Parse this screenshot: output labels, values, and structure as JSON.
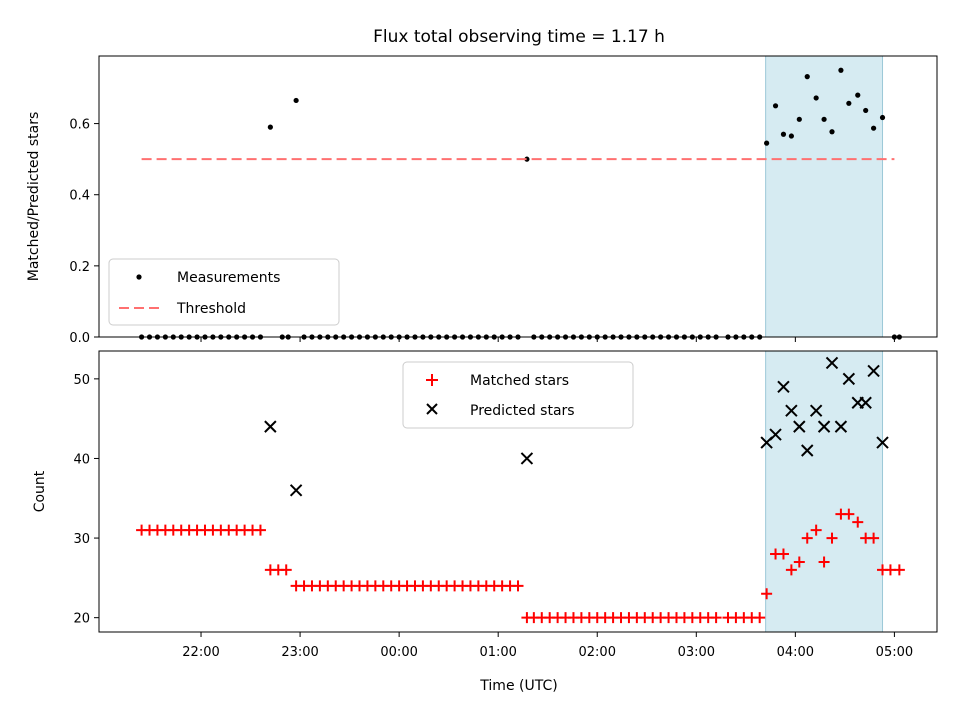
{
  "chart_data": [
    {
      "type": "scatter",
      "title": "Flux total observing time = 1.17 h",
      "xlabel": "",
      "ylabel": "Matched/Predicted stars",
      "xlim_hours": [
        20.97,
        29.43
      ],
      "ylim": [
        0,
        0.79
      ],
      "yticks": [
        0.0,
        0.2,
        0.4,
        0.6
      ],
      "ytick_labels": [
        "0.0",
        "0.2",
        "0.4",
        "0.6"
      ],
      "xticks": [
        22,
        23,
        24,
        25,
        26,
        27,
        28,
        29
      ],
      "highlight_span_hours": [
        27.7,
        28.88
      ],
      "threshold": {
        "name": "Threshold",
        "value": 0.5,
        "x_start": 21.4,
        "x_end": 29.0
      },
      "legend": {
        "position": "lower-left",
        "entries": [
          "Measurements",
          "Threshold"
        ]
      },
      "series": [
        {
          "name": "Measurements",
          "points": [
            [
              21.4,
              0.0
            ],
            [
              21.48,
              0.0
            ],
            [
              21.56,
              0.0
            ],
            [
              21.64,
              0.0
            ],
            [
              21.72,
              0.0
            ],
            [
              21.8,
              0.0
            ],
            [
              21.88,
              0.0
            ],
            [
              21.96,
              0.0
            ],
            [
              22.04,
              0.0
            ],
            [
              22.12,
              0.0
            ],
            [
              22.2,
              0.0
            ],
            [
              22.28,
              0.0
            ],
            [
              22.36,
              0.0
            ],
            [
              22.44,
              0.0
            ],
            [
              22.52,
              0.0
            ],
            [
              22.6,
              0.0
            ],
            [
              22.7,
              0.59
            ],
            [
              22.82,
              0.0
            ],
            [
              22.88,
              0.0
            ],
            [
              22.96,
              0.665
            ],
            [
              23.04,
              0.0
            ],
            [
              23.12,
              0.0
            ],
            [
              23.2,
              0.0
            ],
            [
              23.28,
              0.0
            ],
            [
              23.36,
              0.0
            ],
            [
              23.44,
              0.0
            ],
            [
              23.52,
              0.0
            ],
            [
              23.6,
              0.0
            ],
            [
              23.68,
              0.0
            ],
            [
              23.76,
              0.0
            ],
            [
              23.84,
              0.0
            ],
            [
              23.92,
              0.0
            ],
            [
              24.0,
              0.0
            ],
            [
              24.08,
              0.0
            ],
            [
              24.16,
              0.0
            ],
            [
              24.24,
              0.0
            ],
            [
              24.32,
              0.0
            ],
            [
              24.4,
              0.0
            ],
            [
              24.48,
              0.0
            ],
            [
              24.56,
              0.0
            ],
            [
              24.64,
              0.0
            ],
            [
              24.72,
              0.0
            ],
            [
              24.8,
              0.0
            ],
            [
              24.88,
              0.0
            ],
            [
              24.96,
              0.0
            ],
            [
              25.04,
              0.0
            ],
            [
              25.12,
              0.0
            ],
            [
              25.2,
              0.0
            ],
            [
              25.29,
              0.5
            ],
            [
              25.36,
              0.0
            ],
            [
              25.44,
              0.0
            ],
            [
              25.52,
              0.0
            ],
            [
              25.6,
              0.0
            ],
            [
              25.68,
              0.0
            ],
            [
              25.76,
              0.0
            ],
            [
              25.84,
              0.0
            ],
            [
              25.92,
              0.0
            ],
            [
              26.0,
              0.0
            ],
            [
              26.08,
              0.0
            ],
            [
              26.16,
              0.0
            ],
            [
              26.24,
              0.0
            ],
            [
              26.32,
              0.0
            ],
            [
              26.4,
              0.0
            ],
            [
              26.48,
              0.0
            ],
            [
              26.56,
              0.0
            ],
            [
              26.64,
              0.0
            ],
            [
              26.72,
              0.0
            ],
            [
              26.8,
              0.0
            ],
            [
              26.88,
              0.0
            ],
            [
              26.96,
              0.0
            ],
            [
              27.04,
              0.0
            ],
            [
              27.12,
              0.0
            ],
            [
              27.2,
              0.0
            ],
            [
              27.32,
              0.0
            ],
            [
              27.4,
              0.0
            ],
            [
              27.48,
              0.0
            ],
            [
              27.56,
              0.0
            ],
            [
              27.64,
              0.0
            ],
            [
              27.71,
              0.545
            ],
            [
              27.8,
              0.65
            ],
            [
              27.88,
              0.57
            ],
            [
              27.96,
              0.565
            ],
            [
              28.04,
              0.612
            ],
            [
              28.12,
              0.732
            ],
            [
              28.21,
              0.672
            ],
            [
              28.29,
              0.612
            ],
            [
              28.37,
              0.577
            ],
            [
              28.46,
              0.75
            ],
            [
              28.54,
              0.657
            ],
            [
              28.63,
              0.68
            ],
            [
              28.71,
              0.637
            ],
            [
              28.79,
              0.587
            ],
            [
              28.88,
              0.617
            ],
            [
              29.0,
              0.0
            ],
            [
              29.05,
              0.0
            ]
          ]
        }
      ]
    },
    {
      "type": "scatter",
      "title": "",
      "xlabel": "Time (UTC)",
      "ylabel": "Count",
      "xlim_hours": [
        20.97,
        29.43
      ],
      "ylim": [
        18.2,
        53.5
      ],
      "yticks": [
        20,
        30,
        40,
        50
      ],
      "ytick_labels": [
        "20",
        "30",
        "40",
        "50"
      ],
      "xticks": [
        22,
        23,
        24,
        25,
        26,
        27,
        28,
        29
      ],
      "xtick_labels": [
        "22:00",
        "23:00",
        "00:00",
        "01:00",
        "02:00",
        "03:00",
        "04:00",
        "05:00"
      ],
      "highlight_span_hours": [
        27.7,
        28.88
      ],
      "legend": {
        "position": "upper-center",
        "entries": [
          "Matched stars",
          "Predicted stars"
        ]
      },
      "series": [
        {
          "name": "Matched stars",
          "color": "#ff0000",
          "marker": "plus",
          "points": [
            [
              21.4,
              31
            ],
            [
              21.48,
              31
            ],
            [
              21.56,
              31
            ],
            [
              21.64,
              31
            ],
            [
              21.72,
              31
            ],
            [
              21.8,
              31
            ],
            [
              21.88,
              31
            ],
            [
              21.96,
              31
            ],
            [
              22.04,
              31
            ],
            [
              22.12,
              31
            ],
            [
              22.2,
              31
            ],
            [
              22.28,
              31
            ],
            [
              22.36,
              31
            ],
            [
              22.44,
              31
            ],
            [
              22.52,
              31
            ],
            [
              22.6,
              31
            ],
            [
              22.7,
              26
            ],
            [
              22.78,
              26
            ],
            [
              22.86,
              26
            ],
            [
              22.96,
              24
            ],
            [
              23.04,
              24
            ],
            [
              23.12,
              24
            ],
            [
              23.2,
              24
            ],
            [
              23.28,
              24
            ],
            [
              23.36,
              24
            ],
            [
              23.44,
              24
            ],
            [
              23.52,
              24
            ],
            [
              23.6,
              24
            ],
            [
              23.68,
              24
            ],
            [
              23.76,
              24
            ],
            [
              23.84,
              24
            ],
            [
              23.92,
              24
            ],
            [
              24.0,
              24
            ],
            [
              24.08,
              24
            ],
            [
              24.16,
              24
            ],
            [
              24.24,
              24
            ],
            [
              24.32,
              24
            ],
            [
              24.4,
              24
            ],
            [
              24.48,
              24
            ],
            [
              24.56,
              24
            ],
            [
              24.64,
              24
            ],
            [
              24.72,
              24
            ],
            [
              24.8,
              24
            ],
            [
              24.88,
              24
            ],
            [
              24.96,
              24
            ],
            [
              25.04,
              24
            ],
            [
              25.12,
              24
            ],
            [
              25.2,
              24
            ],
            [
              25.29,
              20
            ],
            [
              25.36,
              20
            ],
            [
              25.44,
              20
            ],
            [
              25.52,
              20
            ],
            [
              25.6,
              20
            ],
            [
              25.68,
              20
            ],
            [
              25.76,
              20
            ],
            [
              25.84,
              20
            ],
            [
              25.92,
              20
            ],
            [
              26.0,
              20
            ],
            [
              26.08,
              20
            ],
            [
              26.16,
              20
            ],
            [
              26.24,
              20
            ],
            [
              26.32,
              20
            ],
            [
              26.4,
              20
            ],
            [
              26.48,
              20
            ],
            [
              26.56,
              20
            ],
            [
              26.64,
              20
            ],
            [
              26.72,
              20
            ],
            [
              26.8,
              20
            ],
            [
              26.88,
              20
            ],
            [
              26.96,
              20
            ],
            [
              27.04,
              20
            ],
            [
              27.12,
              20
            ],
            [
              27.2,
              20
            ],
            [
              27.32,
              20
            ],
            [
              27.4,
              20
            ],
            [
              27.48,
              20
            ],
            [
              27.56,
              20
            ],
            [
              27.64,
              20
            ],
            [
              27.71,
              23
            ],
            [
              27.8,
              28
            ],
            [
              27.88,
              28
            ],
            [
              27.96,
              26
            ],
            [
              28.04,
              27
            ],
            [
              28.12,
              30
            ],
            [
              28.21,
              31
            ],
            [
              28.29,
              27
            ],
            [
              28.37,
              30
            ],
            [
              28.46,
              33
            ],
            [
              28.54,
              33
            ],
            [
              28.63,
              32
            ],
            [
              28.71,
              30
            ],
            [
              28.79,
              30
            ],
            [
              28.88,
              26
            ],
            [
              28.96,
              26
            ],
            [
              29.05,
              26
            ]
          ]
        },
        {
          "name": "Predicted stars",
          "color": "#000000",
          "marker": "x",
          "points": [
            [
              22.7,
              44
            ],
            [
              22.96,
              36
            ],
            [
              25.29,
              40
            ],
            [
              27.71,
              42
            ],
            [
              27.8,
              43
            ],
            [
              27.88,
              49
            ],
            [
              27.96,
              46
            ],
            [
              28.04,
              44
            ],
            [
              28.12,
              41
            ],
            [
              28.21,
              46
            ],
            [
              28.29,
              44
            ],
            [
              28.37,
              52
            ],
            [
              28.46,
              44
            ],
            [
              28.54,
              50
            ],
            [
              28.63,
              47
            ],
            [
              28.71,
              47
            ],
            [
              28.79,
              51
            ],
            [
              28.88,
              42
            ]
          ]
        }
      ]
    }
  ]
}
